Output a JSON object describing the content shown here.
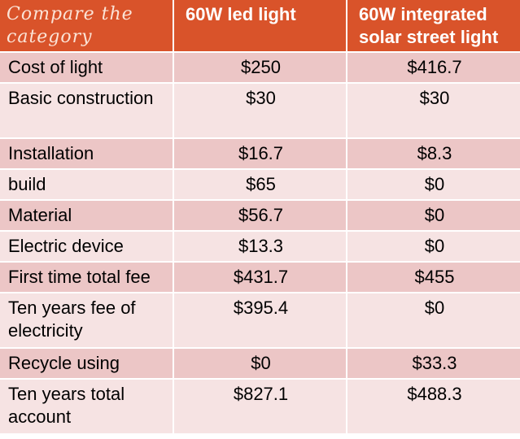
{
  "table": {
    "headers": [
      "Compare the category",
      "60W led light",
      "60W integrated solar street light"
    ],
    "rows": [
      {
        "category": "Cost of light",
        "led": "$250",
        "solar": "$416.7"
      },
      {
        "category": "Basic construction",
        "led": "$30",
        "solar": "$30"
      },
      {
        "category": "Installation",
        "led": "$16.7",
        "solar": "$8.3"
      },
      {
        "category": "build",
        "led": "$65",
        "solar": "$0"
      },
      {
        "category": "Material",
        "led": "$56.7",
        "solar": "$0"
      },
      {
        "category": "Electric device",
        "led": "$13.3",
        "solar": "$0"
      },
      {
        "category": "First time total fee",
        "led": "$431.7",
        "solar": "$455"
      },
      {
        "category": "Ten years fee of electricity",
        "led": "$395.4",
        "solar": "$0"
      },
      {
        "category": "Recycle using",
        "led": "$0",
        "solar": "$33.3"
      },
      {
        "category": "Ten years total account",
        "led": "$827.1",
        "solar": "$488.3"
      }
    ]
  },
  "colors": {
    "header_bg": "#d9532a",
    "header_text": "#ffffff",
    "row_dark": "#ecc6c6",
    "row_light": "#f6e3e3"
  }
}
